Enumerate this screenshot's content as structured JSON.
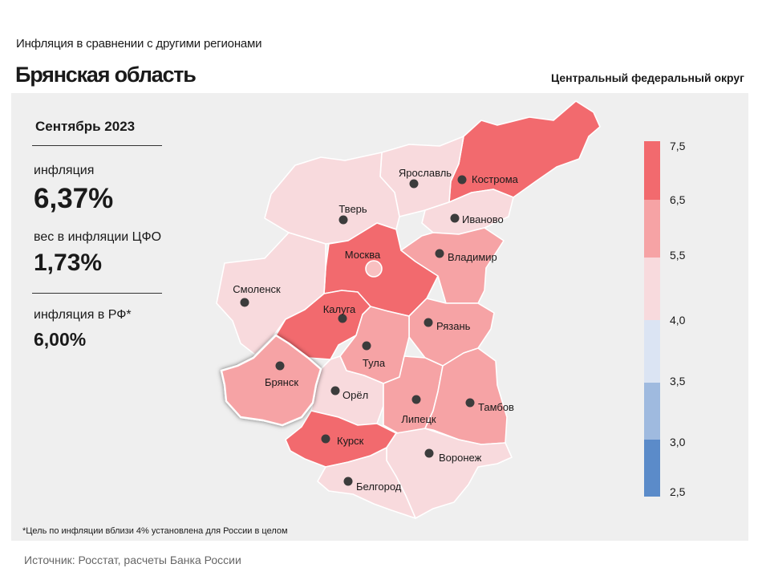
{
  "header": {
    "subtitle": "Инфляция в сравнении с другими регионами",
    "title": "Брянская область",
    "district": "Центральный федеральный округ"
  },
  "sidebar": {
    "period": "Сентябрь 2023",
    "inflation_label": "инфляция",
    "inflation_value": "6,37%",
    "weight_label": "вес в инфляции ЦФО",
    "weight_value": "1,73%",
    "russia_label": "инфляция в РФ*",
    "russia_value": "6,00%"
  },
  "footnote": "*Цель по инфляции вблизи 4% установлена для России в целом",
  "source": "Источник: Росстат, расчеты Банка России",
  "colors": {
    "bin_6_5_7_5": "#f26a6e",
    "bin_5_5_6_5": "#f6a3a5",
    "bin_4_0_5_5": "#f8dadd",
    "bin_3_5_4_0": "#dbe4f3",
    "bin_3_0_3_5": "#9fbadf",
    "bin_2_5_3_0": "#5b8bc9"
  },
  "legend": {
    "ticks": [
      "7,5",
      "6,5",
      "5,5",
      "4,0",
      "3,5",
      "3,0",
      "2,5"
    ]
  },
  "regions": [
    {
      "name": "Кострома",
      "bin": "bin_6_5_7_5",
      "highlighted": false
    },
    {
      "name": "Ярославль",
      "bin": "bin_4_0_5_5",
      "highlighted": false
    },
    {
      "name": "Тверь",
      "bin": "bin_4_0_5_5",
      "highlighted": false
    },
    {
      "name": "Иваново",
      "bin": "bin_4_0_5_5",
      "highlighted": false
    },
    {
      "name": "Москва",
      "bin": "bin_6_5_7_5",
      "highlighted": false
    },
    {
      "name": "Владимир",
      "bin": "bin_5_5_6_5",
      "highlighted": false
    },
    {
      "name": "Смоленск",
      "bin": "bin_4_0_5_5",
      "highlighted": false
    },
    {
      "name": "Калуга",
      "bin": "bin_6_5_7_5",
      "highlighted": false
    },
    {
      "name": "Рязань",
      "bin": "bin_5_5_6_5",
      "highlighted": false
    },
    {
      "name": "Тула",
      "bin": "bin_5_5_6_5",
      "highlighted": false
    },
    {
      "name": "Брянск",
      "bin": "bin_5_5_6_5",
      "highlighted": true
    },
    {
      "name": "Орёл",
      "bin": "bin_4_0_5_5",
      "highlighted": false
    },
    {
      "name": "Липецк",
      "bin": "bin_5_5_6_5",
      "highlighted": false
    },
    {
      "name": "Тамбов",
      "bin": "bin_5_5_6_5",
      "highlighted": false
    },
    {
      "name": "Курск",
      "bin": "bin_6_5_7_5",
      "highlighted": false
    },
    {
      "name": "Воронеж",
      "bin": "bin_4_0_5_5",
      "highlighted": false
    },
    {
      "name": "Белгород",
      "bin": "bin_4_0_5_5",
      "highlighted": false
    }
  ]
}
